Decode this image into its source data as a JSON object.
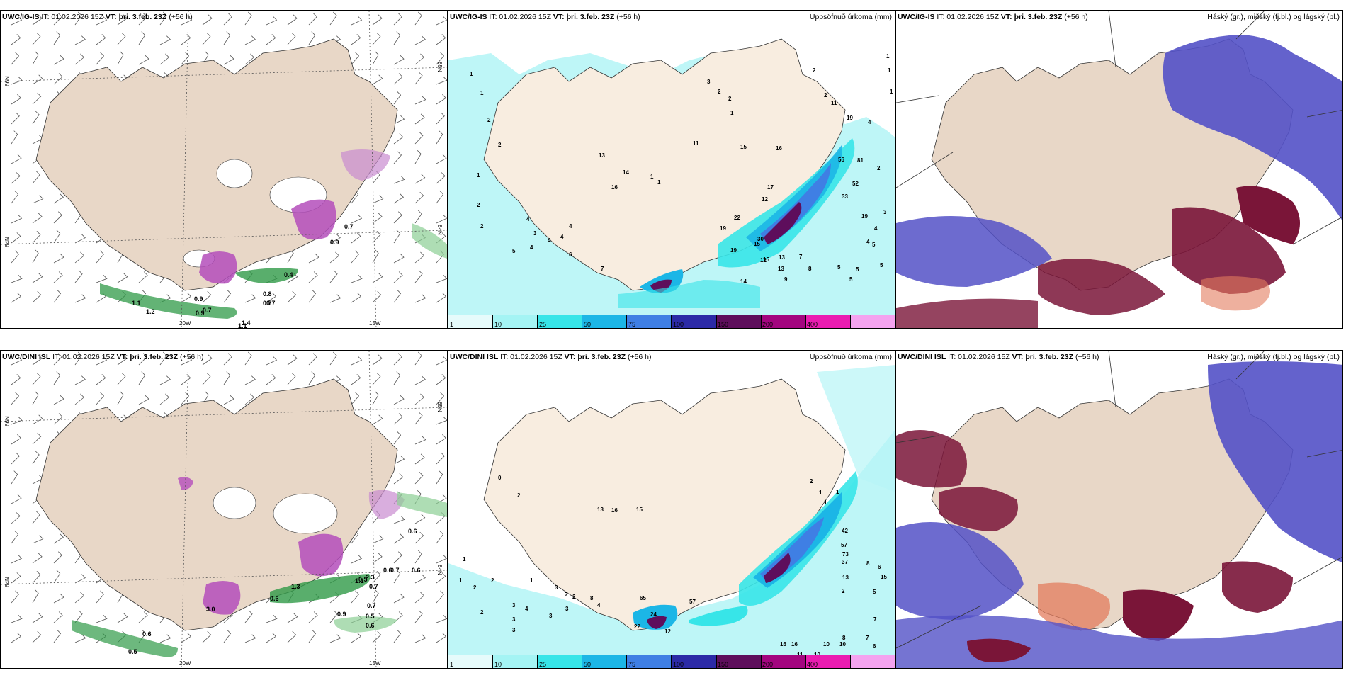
{
  "rows": [
    {
      "model": "UWC/IG-IS",
      "time_text": "IT: 01.02.2026 15Z",
      "vt_label": "VT:",
      "vt_value": "þri. 3.feb. 23Z",
      "offset": "(+56 h)",
      "lat_labels": [
        "66N",
        "64N",
        "65N"
      ],
      "lon_labels": [
        "20W",
        "15W"
      ],
      "right_lat_labels": [
        "65N",
        "64N"
      ],
      "wind_values": [
        "0.7",
        "0.9",
        "0.7",
        "1.1",
        "1.2",
        "0.9",
        "0.7",
        "1.1",
        "1.4",
        "0.7",
        "0.8",
        "0.9",
        "0.4"
      ],
      "precip_values": [
        "1",
        "1",
        "2",
        "2",
        "1",
        "2",
        "4",
        "3",
        "2",
        "5",
        "4",
        "4",
        "4",
        "4",
        "6",
        "7",
        "13",
        "16",
        "14",
        "1",
        "1",
        "11",
        "3",
        "2",
        "2",
        "1",
        "15",
        "16",
        "17",
        "12",
        "30",
        "22",
        "19",
        "19",
        "15",
        "15",
        "13",
        "13",
        "12",
        "14",
        "9",
        "7",
        "8",
        "5",
        "5",
        "5",
        "5",
        "4",
        "5",
        "4",
        "3",
        "19",
        "56",
        "81",
        "52",
        "33",
        "11",
        "19",
        "4",
        "2",
        "1",
        "1",
        "1",
        "2",
        "2"
      ]
    },
    {
      "model": "UWC/DINI ISL",
      "time_text": "IT: 01.02.2026 15Z",
      "vt_label": "VT:",
      "vt_value": "þri. 3.feb. 23Z",
      "offset": "(+56 h)",
      "lat_labels": [
        "66N",
        "64N",
        "65N"
      ],
      "lon_labels": [
        "20W",
        "15W"
      ],
      "right_lat_labels": [
        "65N",
        "64N"
      ],
      "wind_values": [
        "0.6",
        "0.7",
        "0.6",
        "0.6",
        "0.5",
        "0.6",
        "0.5",
        "0.7",
        "0.9",
        "0.6",
        "0.7",
        "0.6",
        "0.5",
        "1.1",
        "3.0",
        "1.3",
        "2.3"
      ],
      "precip_values": [
        "1",
        "2",
        "0",
        "2",
        "2",
        "3",
        "3",
        "3",
        "4",
        "3",
        "3",
        "2",
        "4",
        "13",
        "16",
        "15",
        "3",
        "2",
        "1",
        "1",
        "7",
        "8",
        "22",
        "24",
        "65",
        "12",
        "57",
        "16",
        "16",
        "17",
        "11",
        "10",
        "10",
        "10",
        "9",
        "10",
        "8",
        "7",
        "6",
        "5",
        "7",
        "15",
        "42",
        "57",
        "73",
        "37",
        "13",
        "2",
        "2",
        "1",
        "1",
        "1",
        "8",
        "6",
        "6"
      ]
    }
  ],
  "precip_title": "Uppsöfnuð úrkoma (mm)",
  "cloud_title": "Háský (gr.), miðský (fj.bl.) og lágský (bl.)",
  "colorbar_ticks": [
    "1",
    "10",
    "25",
    "50",
    "75",
    "100",
    "150",
    "200",
    "400"
  ],
  "colorbar_colors": [
    "#e6fbfb",
    "#a4f4f4",
    "#37e5e8",
    "#1cb6e6",
    "#3f7fe4",
    "#2c2aa7",
    "#5e0e5c",
    "#a3057f",
    "#ea1cb1",
    "#f4a3ef"
  ],
  "colors": {
    "land": "#f8ede0",
    "precip_sea": "#b7f5f6",
    "cloud_high": "#b9b9b8",
    "cloud_mid": "#5351c7",
    "cloud_low": "#7a1538",
    "snow_purple": "#b44dbb",
    "rain_green": "#2f9a47"
  }
}
